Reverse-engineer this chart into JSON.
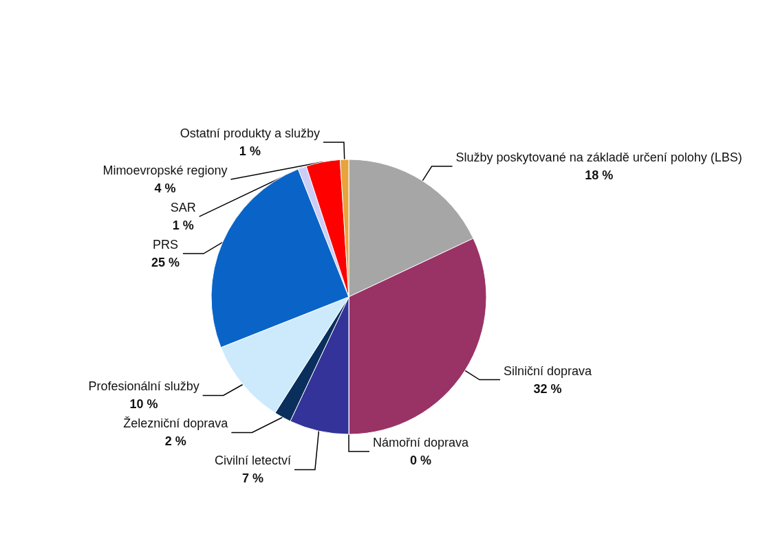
{
  "chart_data": {
    "type": "pie",
    "categories": [
      "Služby poskytované na základě určení polohy (LBS)",
      "Silniční doprava",
      "Námořní doprava",
      "Civilní letectví",
      "Železniční doprava",
      "Profesionální služby",
      "PRS",
      "SAR",
      "Mimoevropské regiony",
      "Ostatní produkty a služby"
    ],
    "values": [
      18,
      32,
      0,
      7,
      2,
      10,
      25,
      1,
      4,
      1
    ],
    "value_labels": [
      "18 %",
      "32 %",
      "0 %",
      "7 %",
      "2 %",
      "10 %",
      "25 %",
      "1 %",
      "4 %",
      "1 %"
    ],
    "colors": [
      "#a6a6a6",
      "#993366",
      "#ffffff",
      "#333399",
      "#0b2f5c",
      "#cdeafd",
      "#0a64c8",
      "#cccdf6",
      "#ff0000",
      "#e8a33a"
    ]
  }
}
